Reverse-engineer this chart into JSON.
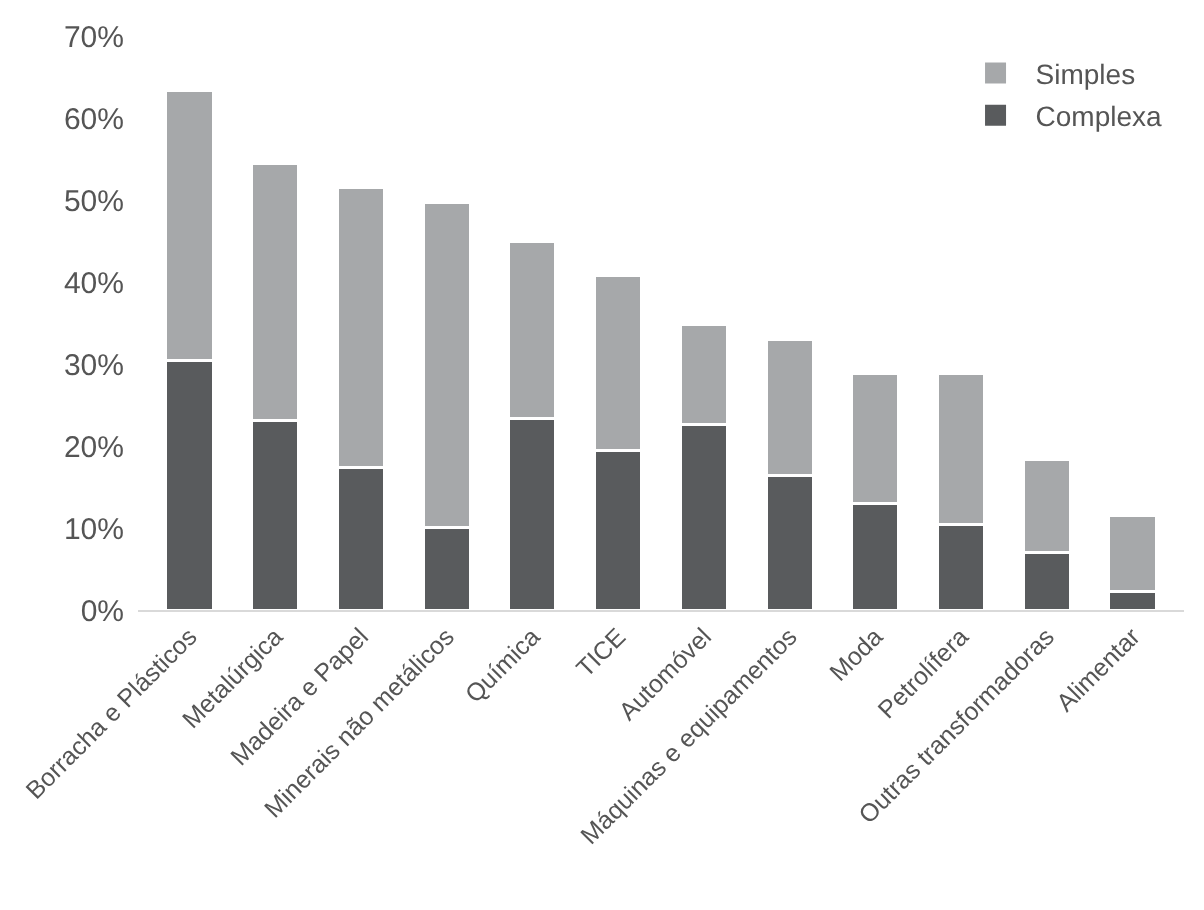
{
  "chart_data": {
    "type": "bar",
    "stacked": true,
    "categories": [
      "Borracha e Plásticos",
      "Metalúrgica",
      "Madeira e Papel",
      "Minerais não metálicos",
      "Química",
      "TICE",
      "Automóvel",
      "Máquinas e equipamentos",
      "Moda",
      "Petrolífera",
      "Outras transformadoras",
      "Alimentar"
    ],
    "series": [
      {
        "name": "Complexa",
        "color": "#595b5d",
        "values": [
          30.4,
          23.1,
          17.4,
          10.1,
          23.4,
          19.5,
          22.6,
          16.4,
          13.0,
          10.4,
          7.0,
          2.3
        ]
      },
      {
        "name": "Simples",
        "color": "#a6a8aa",
        "values": [
          33.0,
          31.3,
          34.1,
          39.6,
          21.6,
          21.3,
          12.2,
          16.6,
          15.9,
          18.5,
          11.4,
          9.2
        ]
      }
    ],
    "ylim": [
      0,
      70
    ],
    "yticks": [
      {
        "value": 0,
        "label": "0%"
      },
      {
        "value": 10,
        "label": "10%"
      },
      {
        "value": 20,
        "label": "20%"
      },
      {
        "value": 30,
        "label": "30%"
      },
      {
        "value": 40,
        "label": "40%"
      },
      {
        "value": 50,
        "label": "50%"
      },
      {
        "value": 60,
        "label": "60%"
      },
      {
        "value": 70,
        "label": "70%"
      }
    ],
    "grid": false,
    "legend": "top right"
  }
}
